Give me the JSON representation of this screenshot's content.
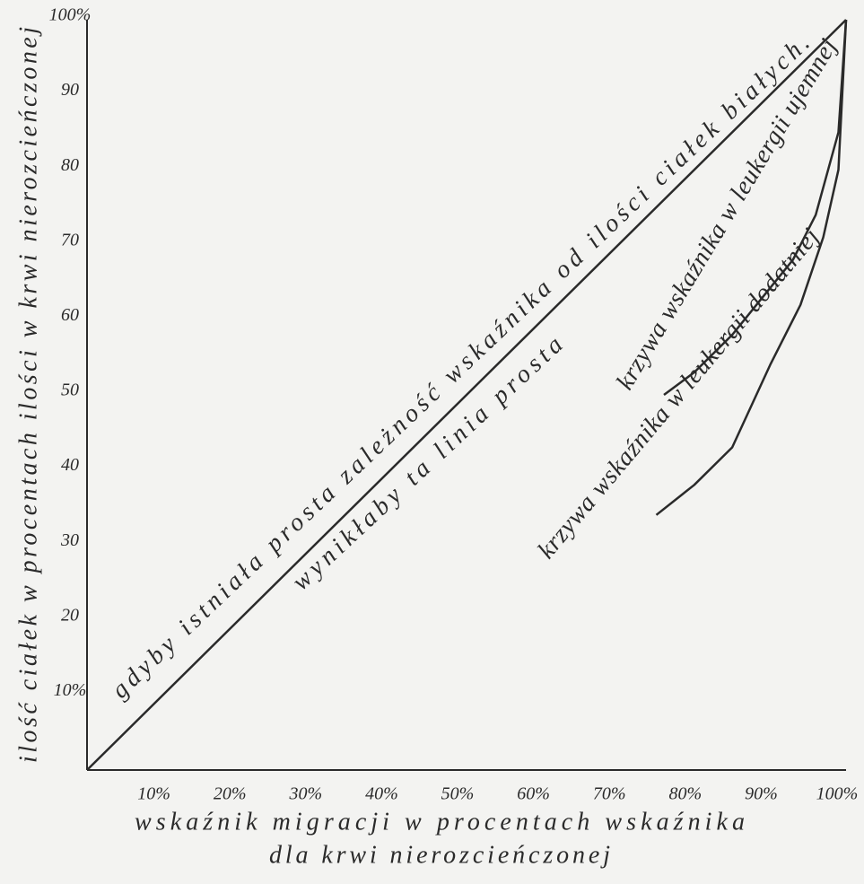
{
  "chart_data": {
    "type": "line",
    "ylabel": "ilość ciałek w procentach ilości w krwi nierozcieńczonej",
    "xlabel": [
      "wskaźnik migracji w procentach wskaźnika",
      "dla krwi nierozcieńczonej"
    ],
    "xlim": [
      0,
      100
    ],
    "ylim": [
      0,
      100
    ],
    "xticks": [
      {
        "value": 10,
        "label": "10%"
      },
      {
        "value": 20,
        "label": "20%"
      },
      {
        "value": 30,
        "label": "30%"
      },
      {
        "value": 40,
        "label": "40%"
      },
      {
        "value": 50,
        "label": "50%"
      },
      {
        "value": 60,
        "label": "60%"
      },
      {
        "value": 70,
        "label": "70%"
      },
      {
        "value": 80,
        "label": "80%"
      },
      {
        "value": 90,
        "label": "90%"
      },
      {
        "value": 100,
        "label": "100%"
      }
    ],
    "yticks": [
      {
        "value": 10,
        "label": "10%"
      },
      20,
      30,
      40,
      50,
      60,
      70,
      80,
      90,
      {
        "value": 100,
        "label": "100%"
      }
    ],
    "series": [
      {
        "color": "#2a2a2a",
        "x": [
          0,
          100
        ],
        "values": [
          0,
          100
        ]
      },
      {
        "color": "#2a2a2a",
        "x": [
          76,
          80,
          85,
          89,
          93,
          96,
          99,
          100
        ],
        "values": [
          50,
          53,
          58,
          63,
          68,
          74,
          85,
          100
        ]
      },
      {
        "color": "#2a2a2a",
        "x": [
          75,
          80,
          85,
          90,
          94,
          97,
          99,
          100
        ],
        "values": [
          34,
          38,
          43,
          54,
          62,
          71,
          80,
          100
        ]
      }
    ],
    "annotations": [
      "gdyby istniała prosta zależność wskaźnika od ilości ciałek białych.",
      "wynikłaby ta linia prosta",
      "krzywa wskaźnika w leukergii ujemnej",
      "krzywa wskaźnika w leukergii dodatniej"
    ]
  }
}
